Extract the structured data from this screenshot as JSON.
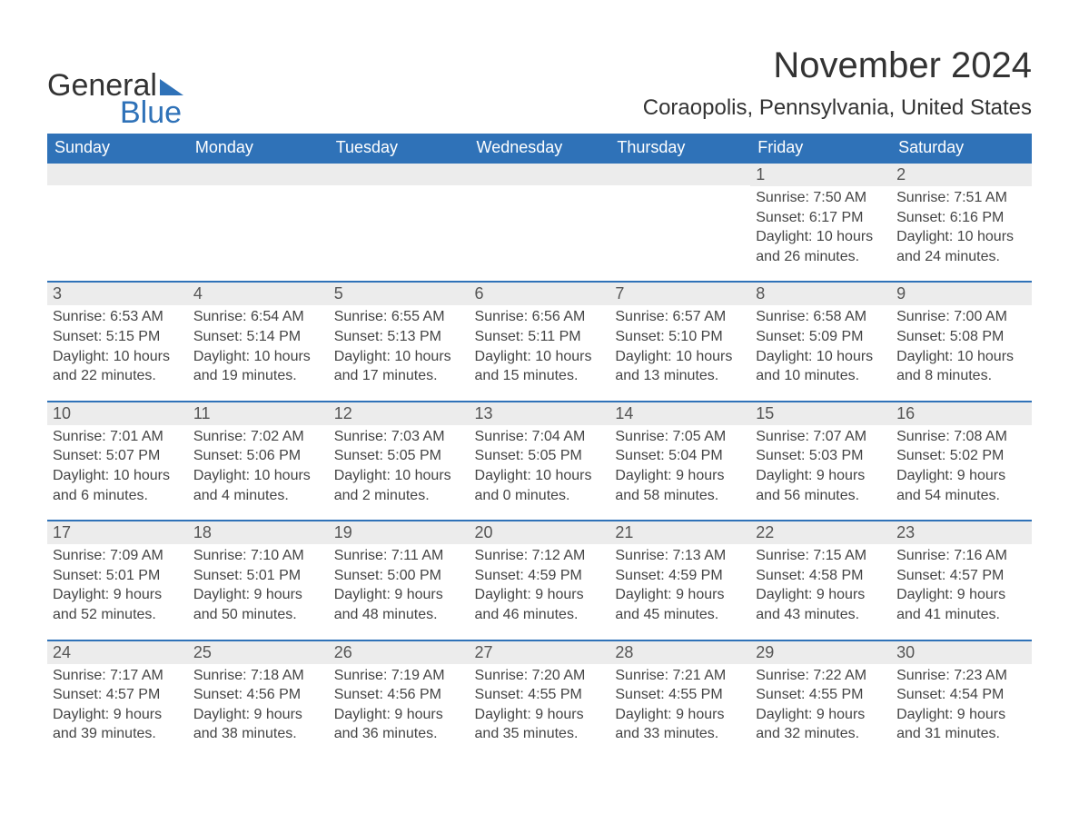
{
  "brand": {
    "word1": "General",
    "word2": "Blue"
  },
  "title": "November 2024",
  "location": "Coraopolis, Pennsylvania, United States",
  "colors": {
    "header_bg": "#2f72b8",
    "header_text": "#ffffff",
    "daynum_bg": "#ececec",
    "daynum_border": "#2f72b8",
    "body_text": "#444444",
    "page_bg": "#ffffff"
  },
  "typography": {
    "title_fontsize": 40,
    "location_fontsize": 24,
    "header_fontsize": 18,
    "daynum_fontsize": 18,
    "cell_fontsize": 16
  },
  "weekdays": [
    "Sunday",
    "Monday",
    "Tuesday",
    "Wednesday",
    "Thursday",
    "Friday",
    "Saturday"
  ],
  "weeks": [
    [
      null,
      null,
      null,
      null,
      null,
      {
        "day": "1",
        "sunrise": "Sunrise: 7:50 AM",
        "sunset": "Sunset: 6:17 PM",
        "daylight1": "Daylight: 10 hours",
        "daylight2": "and 26 minutes."
      },
      {
        "day": "2",
        "sunrise": "Sunrise: 7:51 AM",
        "sunset": "Sunset: 6:16 PM",
        "daylight1": "Daylight: 10 hours",
        "daylight2": "and 24 minutes."
      }
    ],
    [
      {
        "day": "3",
        "sunrise": "Sunrise: 6:53 AM",
        "sunset": "Sunset: 5:15 PM",
        "daylight1": "Daylight: 10 hours",
        "daylight2": "and 22 minutes."
      },
      {
        "day": "4",
        "sunrise": "Sunrise: 6:54 AM",
        "sunset": "Sunset: 5:14 PM",
        "daylight1": "Daylight: 10 hours",
        "daylight2": "and 19 minutes."
      },
      {
        "day": "5",
        "sunrise": "Sunrise: 6:55 AM",
        "sunset": "Sunset: 5:13 PM",
        "daylight1": "Daylight: 10 hours",
        "daylight2": "and 17 minutes."
      },
      {
        "day": "6",
        "sunrise": "Sunrise: 6:56 AM",
        "sunset": "Sunset: 5:11 PM",
        "daylight1": "Daylight: 10 hours",
        "daylight2": "and 15 minutes."
      },
      {
        "day": "7",
        "sunrise": "Sunrise: 6:57 AM",
        "sunset": "Sunset: 5:10 PM",
        "daylight1": "Daylight: 10 hours",
        "daylight2": "and 13 minutes."
      },
      {
        "day": "8",
        "sunrise": "Sunrise: 6:58 AM",
        "sunset": "Sunset: 5:09 PM",
        "daylight1": "Daylight: 10 hours",
        "daylight2": "and 10 minutes."
      },
      {
        "day": "9",
        "sunrise": "Sunrise: 7:00 AM",
        "sunset": "Sunset: 5:08 PM",
        "daylight1": "Daylight: 10 hours",
        "daylight2": "and 8 minutes."
      }
    ],
    [
      {
        "day": "10",
        "sunrise": "Sunrise: 7:01 AM",
        "sunset": "Sunset: 5:07 PM",
        "daylight1": "Daylight: 10 hours",
        "daylight2": "and 6 minutes."
      },
      {
        "day": "11",
        "sunrise": "Sunrise: 7:02 AM",
        "sunset": "Sunset: 5:06 PM",
        "daylight1": "Daylight: 10 hours",
        "daylight2": "and 4 minutes."
      },
      {
        "day": "12",
        "sunrise": "Sunrise: 7:03 AM",
        "sunset": "Sunset: 5:05 PM",
        "daylight1": "Daylight: 10 hours",
        "daylight2": "and 2 minutes."
      },
      {
        "day": "13",
        "sunrise": "Sunrise: 7:04 AM",
        "sunset": "Sunset: 5:05 PM",
        "daylight1": "Daylight: 10 hours",
        "daylight2": "and 0 minutes."
      },
      {
        "day": "14",
        "sunrise": "Sunrise: 7:05 AM",
        "sunset": "Sunset: 5:04 PM",
        "daylight1": "Daylight: 9 hours",
        "daylight2": "and 58 minutes."
      },
      {
        "day": "15",
        "sunrise": "Sunrise: 7:07 AM",
        "sunset": "Sunset: 5:03 PM",
        "daylight1": "Daylight: 9 hours",
        "daylight2": "and 56 minutes."
      },
      {
        "day": "16",
        "sunrise": "Sunrise: 7:08 AM",
        "sunset": "Sunset: 5:02 PM",
        "daylight1": "Daylight: 9 hours",
        "daylight2": "and 54 minutes."
      }
    ],
    [
      {
        "day": "17",
        "sunrise": "Sunrise: 7:09 AM",
        "sunset": "Sunset: 5:01 PM",
        "daylight1": "Daylight: 9 hours",
        "daylight2": "and 52 minutes."
      },
      {
        "day": "18",
        "sunrise": "Sunrise: 7:10 AM",
        "sunset": "Sunset: 5:01 PM",
        "daylight1": "Daylight: 9 hours",
        "daylight2": "and 50 minutes."
      },
      {
        "day": "19",
        "sunrise": "Sunrise: 7:11 AM",
        "sunset": "Sunset: 5:00 PM",
        "daylight1": "Daylight: 9 hours",
        "daylight2": "and 48 minutes."
      },
      {
        "day": "20",
        "sunrise": "Sunrise: 7:12 AM",
        "sunset": "Sunset: 4:59 PM",
        "daylight1": "Daylight: 9 hours",
        "daylight2": "and 46 minutes."
      },
      {
        "day": "21",
        "sunrise": "Sunrise: 7:13 AM",
        "sunset": "Sunset: 4:59 PM",
        "daylight1": "Daylight: 9 hours",
        "daylight2": "and 45 minutes."
      },
      {
        "day": "22",
        "sunrise": "Sunrise: 7:15 AM",
        "sunset": "Sunset: 4:58 PM",
        "daylight1": "Daylight: 9 hours",
        "daylight2": "and 43 minutes."
      },
      {
        "day": "23",
        "sunrise": "Sunrise: 7:16 AM",
        "sunset": "Sunset: 4:57 PM",
        "daylight1": "Daylight: 9 hours",
        "daylight2": "and 41 minutes."
      }
    ],
    [
      {
        "day": "24",
        "sunrise": "Sunrise: 7:17 AM",
        "sunset": "Sunset: 4:57 PM",
        "daylight1": "Daylight: 9 hours",
        "daylight2": "and 39 minutes."
      },
      {
        "day": "25",
        "sunrise": "Sunrise: 7:18 AM",
        "sunset": "Sunset: 4:56 PM",
        "daylight1": "Daylight: 9 hours",
        "daylight2": "and 38 minutes."
      },
      {
        "day": "26",
        "sunrise": "Sunrise: 7:19 AM",
        "sunset": "Sunset: 4:56 PM",
        "daylight1": "Daylight: 9 hours",
        "daylight2": "and 36 minutes."
      },
      {
        "day": "27",
        "sunrise": "Sunrise: 7:20 AM",
        "sunset": "Sunset: 4:55 PM",
        "daylight1": "Daylight: 9 hours",
        "daylight2": "and 35 minutes."
      },
      {
        "day": "28",
        "sunrise": "Sunrise: 7:21 AM",
        "sunset": "Sunset: 4:55 PM",
        "daylight1": "Daylight: 9 hours",
        "daylight2": "and 33 minutes."
      },
      {
        "day": "29",
        "sunrise": "Sunrise: 7:22 AM",
        "sunset": "Sunset: 4:55 PM",
        "daylight1": "Daylight: 9 hours",
        "daylight2": "and 32 minutes."
      },
      {
        "day": "30",
        "sunrise": "Sunrise: 7:23 AM",
        "sunset": "Sunset: 4:54 PM",
        "daylight1": "Daylight: 9 hours",
        "daylight2": "and 31 minutes."
      }
    ]
  ]
}
